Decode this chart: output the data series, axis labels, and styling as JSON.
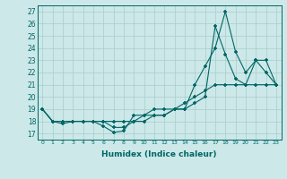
{
  "xlabel": "Humidex (Indice chaleur)",
  "ylabel": "",
  "xlim": [
    -0.5,
    23.5
  ],
  "ylim": [
    16.5,
    27.5
  ],
  "yticks": [
    17,
    18,
    19,
    20,
    21,
    22,
    23,
    24,
    25,
    26,
    27
  ],
  "xticks": [
    0,
    1,
    2,
    3,
    4,
    5,
    6,
    7,
    8,
    9,
    10,
    11,
    12,
    13,
    14,
    15,
    16,
    17,
    18,
    19,
    20,
    21,
    22,
    23
  ],
  "bg_color": "#cce8e8",
  "grid_color": "#aacccc",
  "line_color": "#006666",
  "lines": [
    {
      "x": [
        0,
        1,
        2,
        3,
        4,
        5,
        6,
        7,
        8,
        9,
        10,
        11,
        12,
        13,
        14,
        15,
        16,
        17,
        18,
        19,
        20,
        21,
        22,
        23
      ],
      "y": [
        19,
        18,
        17.8,
        18,
        18,
        18,
        17.6,
        17.1,
        17.2,
        18.5,
        18.5,
        19,
        19,
        19,
        19,
        21,
        22.5,
        24,
        27,
        23.7,
        22,
        23,
        22,
        21
      ]
    },
    {
      "x": [
        0,
        1,
        2,
        3,
        4,
        5,
        6,
        7,
        8,
        9,
        10,
        11,
        12,
        13,
        14,
        15,
        16,
        17,
        18,
        19,
        20,
        21,
        22,
        23
      ],
      "y": [
        19,
        18,
        18,
        18,
        18,
        18,
        18,
        17.5,
        17.5,
        18,
        18.5,
        18.5,
        18.5,
        19,
        19,
        19.5,
        20,
        25.8,
        23.5,
        21.5,
        21,
        23,
        23,
        21
      ]
    },
    {
      "x": [
        0,
        1,
        2,
        3,
        4,
        5,
        6,
        7,
        8,
        9,
        10,
        11,
        12,
        13,
        14,
        15,
        16,
        17,
        18,
        19,
        20,
        21,
        22,
        23
      ],
      "y": [
        19,
        18,
        18,
        18,
        18,
        18,
        18,
        18,
        18,
        18,
        18,
        18.5,
        18.5,
        19,
        19.5,
        20,
        20.5,
        21,
        21,
        21,
        21,
        21,
        21,
        21
      ]
    }
  ]
}
